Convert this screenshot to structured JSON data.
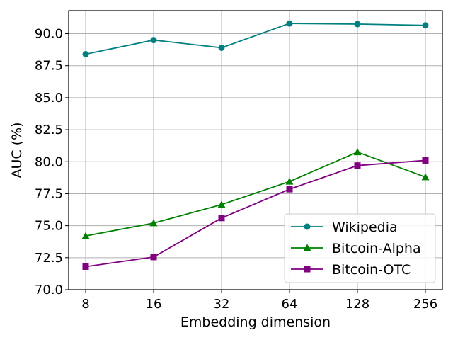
{
  "chart_data": {
    "type": "line",
    "xlabel": "Embedding dimension",
    "ylabel": "AUC (%)",
    "categories": [
      "8",
      "16",
      "32",
      "64",
      "128",
      "256"
    ],
    "ylim": [
      70.0,
      91.8
    ],
    "yticks": [
      "70.0",
      "72.5",
      "75.0",
      "77.5",
      "80.0",
      "82.5",
      "85.0",
      "87.5",
      "90.0"
    ],
    "grid": true,
    "legend_position": "lower-right",
    "series": [
      {
        "name": "Wikipedia",
        "color": "#008080",
        "marker": "circle",
        "values": [
          88.4,
          89.5,
          88.9,
          90.8,
          90.75,
          90.65
        ]
      },
      {
        "name": "Bitcoin-Alpha",
        "color": "#008000",
        "marker": "triangle",
        "values": [
          74.2,
          75.2,
          76.65,
          78.45,
          80.75,
          78.8
        ]
      },
      {
        "name": "Bitcoin-OTC",
        "color": "#800080",
        "marker": "square",
        "values": [
          71.8,
          72.55,
          75.6,
          77.85,
          79.7,
          80.1
        ]
      }
    ]
  }
}
